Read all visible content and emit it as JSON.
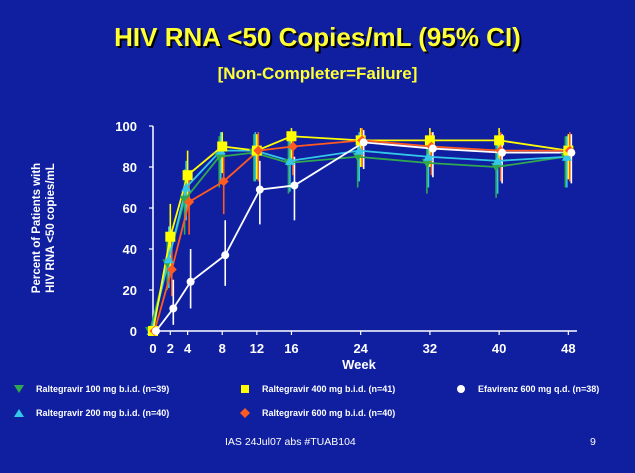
{
  "slide": {
    "title": "HIV RNA <50 Copies/mL (95% CI)",
    "subtitle": "[Non-Completer=Failure]",
    "footer_left": "IAS 24Jul07 abs #TUAB104",
    "page_number": "9"
  },
  "chart_data": {
    "type": "line",
    "title": "",
    "xlabel": "Week",
    "ylabel_line1": "Percent of Patients with",
    "ylabel_line2": "HIV RNA <50 copies/mL",
    "xlim": [
      0,
      49
    ],
    "ylim": [
      0,
      100
    ],
    "x_ticks": [
      0,
      2,
      4,
      8,
      12,
      16,
      24,
      32,
      40,
      48
    ],
    "y_ticks": [
      0,
      20,
      40,
      60,
      80,
      100
    ],
    "grid": false,
    "series": [
      {
        "name": "Raltegravir 100 mg b.i.d. (n=39)",
        "color": "#2fa84f",
        "marker": "triangle-down",
        "x": [
          0,
          2,
          4,
          8,
          12,
          16,
          24,
          32,
          40,
          48
        ],
        "y": [
          0,
          33,
          64,
          85,
          87,
          82,
          85,
          82,
          80,
          85
        ],
        "ci_low": [
          0,
          20,
          47,
          70,
          73,
          67,
          70,
          67,
          65,
          70
        ],
        "ci_high": [
          0,
          48,
          79,
          95,
          96,
          93,
          95,
          93,
          92,
          95
        ]
      },
      {
        "name": "Raltegravir 200 mg b.i.d. (n=40)",
        "color": "#33c8e8",
        "marker": "triangle-up",
        "x": [
          0,
          2,
          4,
          8,
          12,
          16,
          24,
          32,
          40,
          48
        ],
        "y": [
          0,
          35,
          70,
          88,
          88,
          83,
          88,
          85,
          83,
          85
        ],
        "ci_low": [
          0,
          21,
          54,
          73,
          73,
          68,
          73,
          70,
          67,
          70
        ],
        "ci_high": [
          0,
          51,
          83,
          97,
          97,
          93,
          97,
          95,
          94,
          95
        ]
      },
      {
        "name": "Raltegravir 400 mg b.i.d. (n=41)",
        "color": "#ffff00",
        "marker": "square",
        "x": [
          0,
          2,
          4,
          8,
          12,
          16,
          24,
          32,
          40,
          48
        ],
        "y": [
          0,
          46,
          76,
          90,
          88,
          95,
          93,
          93,
          93,
          88
        ],
        "ci_low": [
          0,
          31,
          60,
          77,
          74,
          83,
          80,
          80,
          80,
          74
        ],
        "ci_high": [
          0,
          62,
          88,
          97,
          96,
          99,
          99,
          99,
          99,
          96
        ]
      },
      {
        "name": "Raltegravir 600 mg b.i.d. (n=40)",
        "color": "#ff5a1f",
        "marker": "diamond",
        "x": [
          0,
          2,
          4,
          8,
          12,
          16,
          24,
          32,
          40,
          48
        ],
        "y": [
          0,
          30,
          63,
          73,
          88,
          90,
          93,
          90,
          88,
          88
        ],
        "ci_low": [
          0,
          17,
          47,
          57,
          73,
          76,
          80,
          76,
          73,
          73
        ],
        "ci_high": [
          0,
          46,
          77,
          86,
          97,
          97,
          99,
          97,
          97,
          97
        ]
      },
      {
        "name": "Efavirenz  600 mg q.d. (n=38)",
        "color": "#ffffff",
        "marker": "circle",
        "x": [
          0,
          2,
          4,
          8,
          12,
          16,
          24,
          32,
          40,
          48
        ],
        "y": [
          0,
          11,
          24,
          37,
          69,
          71,
          92,
          89,
          87,
          87
        ],
        "ci_low": [
          0,
          3,
          11,
          22,
          52,
          54,
          79,
          75,
          72,
          72
        ],
        "ci_high": [
          0,
          25,
          40,
          54,
          83,
          85,
          98,
          97,
          96,
          96
        ]
      }
    ]
  },
  "legend": {
    "items": [
      {
        "label": "Raltegravir 100 mg b.i.d. (n=39)",
        "marker": "triangle-down",
        "color": "#2fa84f"
      },
      {
        "label": "Raltegravir 400 mg b.i.d. (n=41)",
        "marker": "square",
        "color": "#ffff00"
      },
      {
        "label": "Efavirenz  600 mg q.d. (n=38)",
        "marker": "circle",
        "color": "#ffffff"
      },
      {
        "label": "Raltegravir 200 mg b.i.d. (n=40)",
        "marker": "triangle-up",
        "color": "#33c8e8"
      },
      {
        "label": "Raltegravir 600 mg b.i.d. (n=40)",
        "marker": "diamond",
        "color": "#ff5a1f"
      }
    ]
  }
}
